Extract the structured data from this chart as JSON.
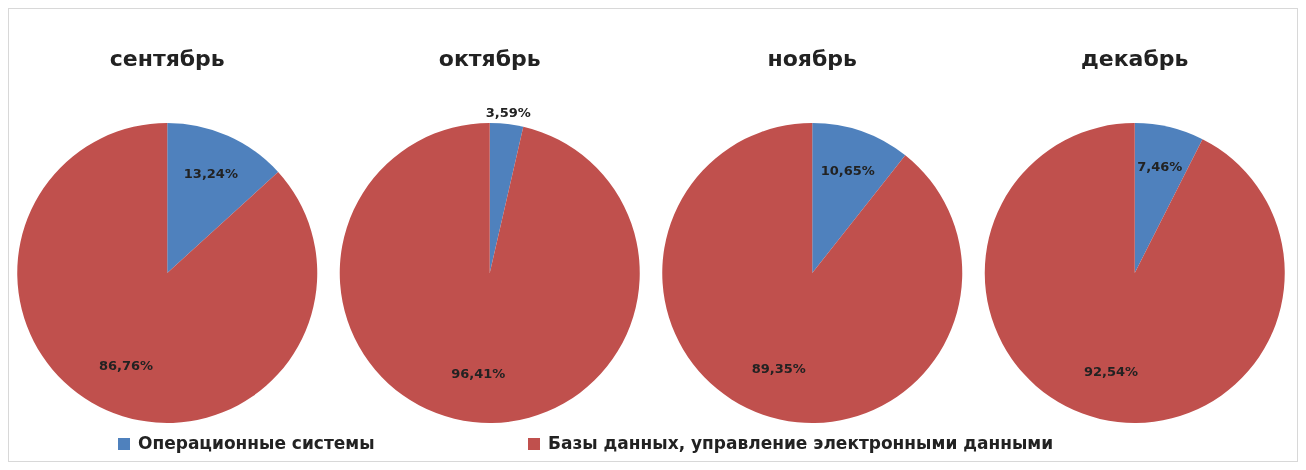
{
  "chart_data": [
    {
      "type": "pie",
      "title": "сентябрь",
      "categories": [
        "Операционные системы",
        "Базы данных, управление электронными данными"
      ],
      "values": [
        13.24,
        86.76
      ],
      "value_labels": [
        "13,24%",
        "86,76%"
      ],
      "colors": [
        "#4f81bd",
        "#c0504d"
      ],
      "legend": "bottom"
    },
    {
      "type": "pie",
      "title": "октябрь",
      "categories": [
        null,
        null
      ],
      "values": [
        3.59,
        96.41
      ],
      "value_labels": [
        "3,59%",
        "96,41%"
      ],
      "colors": [
        "#4f81bd",
        "#c0504d"
      ]
    },
    {
      "type": "pie",
      "title": "ноябрь",
      "categories": [
        null,
        null
      ],
      "values": [
        10.65,
        89.35
      ],
      "value_labels": [
        "10,65%",
        "89,35%"
      ],
      "colors": [
        "#4f81bd",
        "#c0504d"
      ]
    },
    {
      "type": "pie",
      "title": "декабрь",
      "categories": [
        null,
        null
      ],
      "values": [
        7.46,
        92.54
      ],
      "value_labels": [
        "7,46%",
        "92,54%"
      ],
      "colors": [
        "#4f81bd",
        "#c0504d"
      ]
    }
  ]
}
